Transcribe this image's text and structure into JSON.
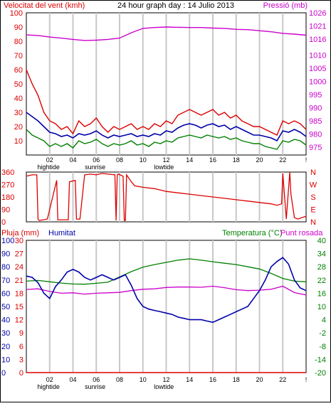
{
  "header": {
    "wind_title": "Velocitat del vent (kmh)",
    "graph_title": "24 hour graph day : 14 Julio 2013",
    "pressure_title": "Pressió (mb)"
  },
  "lower_header": {
    "rain_label": "Pluja (mm)",
    "humidity_label": "Humitat",
    "temperature_label": "Temperatura (°C)",
    "dewpoint_label": "Punt rosada"
  },
  "x_axis": {
    "hour_labels": [
      "02",
      "04",
      "06",
      "08",
      "10",
      "12",
      "14",
      "16",
      "18",
      "20",
      "22",
      "!"
    ],
    "event_labels": [
      {
        "text": "hightide",
        "hour": 1.9
      },
      {
        "text": "sunrise",
        "hour": 5.9
      },
      {
        "text": "lowtide",
        "hour": 11.8
      }
    ]
  },
  "colors": {
    "wind": "#dd0000",
    "wind_avg": "#0000aa",
    "wind_min": "#008000",
    "pressure": "#cc00cc",
    "direction": "#dd0000",
    "temperature": "#008000",
    "dewpoint": "#cc00cc",
    "humidity": "#0000aa",
    "rain": "#dd0000",
    "grid": "#c8c8c8",
    "frame": "#000000"
  },
  "chart_data": [
    {
      "type": "line",
      "title": "24 hour graph day : 14 Julio 2013",
      "x_unit": "hour",
      "xlim": [
        0,
        24
      ],
      "y_left": {
        "label": "Velocitat del vent (kmh)",
        "ticks": [
          10,
          20,
          30,
          40,
          50,
          60,
          70,
          80,
          90,
          100
        ],
        "lim": [
          0,
          100
        ]
      },
      "y_right": {
        "label": "Pressió (mb)",
        "ticks": [
          975,
          980,
          985,
          990,
          995,
          1000,
          1005,
          1010,
          1016,
          1021,
          1026
        ],
        "lim": [
          972,
          1026
        ]
      },
      "grid": true,
      "series": [
        {
          "name": "Pressió (mb)",
          "axis": "right",
          "x": [
            0,
            1,
            2,
            3,
            4,
            5,
            6,
            7,
            8,
            9,
            10,
            11,
            12,
            13,
            14,
            15,
            16,
            17,
            18,
            19,
            20,
            21,
            22,
            23,
            24
          ],
          "y": [
            1017.6,
            1017.4,
            1016.8,
            1016.4,
            1015.9,
            1015.5,
            1015.6,
            1015.9,
            1016.4,
            1018.4,
            1020.1,
            1020.4,
            1020.6,
            1020.5,
            1020.4,
            1020.4,
            1020.2,
            1020.1,
            1019.7,
            1019.6,
            1019.2,
            1018.8,
            1018.2,
            1017.9,
            1017.5
          ]
        },
        {
          "name": "gust",
          "axis": "left",
          "x": [
            0,
            0.5,
            1,
            1.5,
            2,
            2.5,
            3,
            3.5,
            4,
            4.5,
            5,
            5.5,
            6,
            6.5,
            7,
            7.5,
            8,
            8.5,
            9,
            9.5,
            10,
            10.5,
            11,
            11.5,
            12,
            12.5,
            13,
            13.5,
            14,
            14.5,
            15,
            15.5,
            16,
            16.5,
            17,
            17.5,
            18,
            18.5,
            19,
            19.5,
            20,
            20.5,
            21,
            21.5,
            22,
            22.5,
            23,
            23.5,
            24
          ],
          "y": [
            60,
            50,
            42,
            30,
            24,
            22,
            18,
            20,
            15,
            24,
            20,
            22,
            26,
            20,
            16,
            20,
            18,
            20,
            22,
            18,
            20,
            18,
            22,
            20,
            24,
            22,
            28,
            30,
            32,
            30,
            28,
            30,
            32,
            28,
            30,
            26,
            28,
            24,
            22,
            20,
            20,
            18,
            16,
            14,
            24,
            22,
            24,
            22,
            18
          ]
        },
        {
          "name": "average",
          "axis": "left",
          "x": [
            0,
            0.5,
            1,
            1.5,
            2,
            2.5,
            3,
            3.5,
            4,
            4.5,
            5,
            5.5,
            6,
            6.5,
            7,
            7.5,
            8,
            8.5,
            9,
            9.5,
            10,
            10.5,
            11,
            11.5,
            12,
            12.5,
            13,
            13.5,
            14,
            14.5,
            15,
            15.5,
            16,
            16.5,
            17,
            17.5,
            18,
            18.5,
            19,
            19.5,
            20,
            20.5,
            21,
            21.5,
            22,
            22.5,
            23,
            23.5,
            24
          ],
          "y": [
            30,
            27,
            24,
            20,
            16,
            15,
            13,
            14,
            12,
            15,
            14,
            15,
            17,
            14,
            12,
            14,
            13,
            14,
            15,
            13,
            14,
            13,
            15,
            14,
            17,
            16,
            19,
            21,
            22,
            21,
            19,
            21,
            22,
            20,
            21,
            18,
            20,
            18,
            16,
            14,
            14,
            13,
            12,
            10,
            17,
            16,
            18,
            16,
            13
          ]
        },
        {
          "name": "minimum",
          "axis": "left",
          "x": [
            0,
            0.5,
            1,
            1.5,
            2,
            2.5,
            3,
            3.5,
            4,
            4.5,
            5,
            5.5,
            6,
            6.5,
            7,
            7.5,
            8,
            8.5,
            9,
            9.5,
            10,
            10.5,
            11,
            11.5,
            12,
            12.5,
            13,
            13.5,
            14,
            14.5,
            15,
            15.5,
            16,
            16.5,
            17,
            17.5,
            18,
            18.5,
            19,
            19.5,
            20,
            20.5,
            21,
            21.5,
            22,
            22.5,
            23,
            23.5,
            24
          ],
          "y": [
            18,
            14,
            12,
            10,
            6,
            8,
            6,
            8,
            5,
            10,
            8,
            9,
            11,
            8,
            6,
            8,
            7,
            8,
            10,
            7,
            8,
            6,
            9,
            8,
            10,
            9,
            12,
            13,
            14,
            13,
            12,
            14,
            13,
            12,
            13,
            11,
            12,
            10,
            9,
            8,
            8,
            6,
            5,
            4,
            10,
            9,
            11,
            10,
            7
          ]
        }
      ]
    },
    {
      "type": "line",
      "title": "",
      "x_unit": "hour",
      "xlim": [
        0,
        24
      ],
      "y_left": {
        "label": "",
        "ticks": [
          0,
          90,
          180,
          270,
          360
        ],
        "lim": [
          0,
          360
        ]
      },
      "y_right_letters": [
        "N",
        "W",
        "S",
        "E",
        "N"
      ],
      "grid": true,
      "series": [
        {
          "name": "direction",
          "x": [
            0,
            0.5,
            0.9,
            1.0,
            1.1,
            1.8,
            2.6,
            2.7,
            3.6,
            3.7,
            4.2,
            4.3,
            4.6,
            5.0,
            5.5,
            6.0,
            6.5,
            7.0,
            7.6,
            7.7,
            7.8,
            7.9,
            8.3,
            8.4,
            8.5,
            8.6,
            9.0,
            9.3,
            10.0,
            11.0,
            12.0,
            13.0,
            14.0,
            15.0,
            16.0,
            17.0,
            18.0,
            19.0,
            20.0,
            21.0,
            21.5,
            21.9,
            22.0,
            22.3,
            22.6,
            22.7,
            23.0,
            23.3,
            23.6,
            24.0
          ],
          "y": [
            330,
            340,
            340,
            20,
            10,
            20,
            300,
            15,
            15,
            290,
            300,
            20,
            20,
            340,
            345,
            340,
            350,
            345,
            340,
            10,
            340,
            345,
            330,
            10,
            10,
            340,
            290,
            260,
            250,
            240,
            220,
            210,
            200,
            190,
            180,
            170,
            160,
            150,
            140,
            130,
            120,
            130,
            350,
            20,
            360,
            200,
            30,
            20,
            30,
            40
          ]
        }
      ]
    },
    {
      "type": "line",
      "title": "",
      "x_unit": "hour",
      "xlim": [
        0,
        24
      ],
      "y_left_humidity": {
        "label": "Humitat",
        "ticks": [
          0,
          10,
          20,
          30,
          40,
          50,
          60,
          70,
          80,
          90,
          100
        ],
        "lim": [
          0,
          100
        ]
      },
      "y_left_rain": {
        "label": "Pluja (mm)",
        "ticks": [
          0,
          3,
          6,
          9,
          12,
          15,
          18,
          21,
          24,
          27,
          30
        ],
        "lim": [
          0,
          30
        ]
      },
      "y_right": {
        "label": "Temperatura (°C)",
        "ticks": [
          -20,
          -14,
          -8,
          -2,
          4,
          10,
          16,
          22,
          28,
          34,
          40
        ],
        "lim": [
          -20,
          40
        ]
      },
      "grid": true,
      "series": [
        {
          "name": "Temperatura (°C)",
          "axis": "right",
          "x": [
            0,
            1,
            2,
            3,
            4,
            5,
            6,
            7,
            8,
            9,
            10,
            11,
            12,
            13,
            14,
            15,
            16,
            17,
            18,
            19,
            20,
            21,
            22,
            23,
            24
          ],
          "y": [
            21.5,
            21.8,
            21.2,
            20.6,
            20.2,
            20.1,
            20.5,
            21.0,
            23.4,
            25.8,
            27.8,
            29.0,
            30.0,
            31.0,
            31.6,
            31.0,
            30.3,
            29.6,
            29.0,
            28.0,
            27.0,
            25.0,
            22.7,
            21.5,
            21.2
          ]
        },
        {
          "name": "Punt rosada",
          "axis": "right",
          "x": [
            0,
            1,
            2,
            3,
            4,
            5,
            6,
            7,
            8,
            9,
            10,
            11,
            12,
            13,
            14,
            15,
            16,
            17,
            18,
            19,
            20,
            21,
            22,
            23,
            24
          ],
          "y": [
            17.7,
            18.0,
            16.8,
            16.0,
            16.2,
            15.6,
            16.0,
            16.2,
            16.4,
            17.2,
            17.8,
            18.0,
            18.6,
            18.8,
            18.8,
            18.7,
            19.2,
            18.5,
            17.6,
            17.2,
            17.4,
            17.8,
            19.2,
            16.3,
            15.2
          ]
        },
        {
          "name": "Humitat",
          "axis": "left",
          "x": [
            0,
            0.5,
            1,
            1.5,
            2,
            2.5,
            3,
            3.5,
            4,
            4.5,
            5,
            5.5,
            6,
            6.5,
            7,
            7.5,
            8,
            8.5,
            9,
            9.5,
            10,
            10.5,
            11,
            11.5,
            12,
            12.5,
            13,
            13.5,
            14,
            14.5,
            15,
            15.5,
            16,
            16.5,
            17,
            17.5,
            18,
            18.5,
            19,
            19.5,
            20,
            20.5,
            21,
            21.5,
            22,
            22.5,
            23,
            23.5,
            24
          ],
          "y": [
            73,
            72,
            68,
            60,
            56,
            65,
            70,
            76,
            78,
            76,
            72,
            70,
            72,
            74,
            72,
            70,
            72,
            74,
            66,
            56,
            50,
            48,
            47,
            46,
            45,
            44,
            42,
            41,
            40,
            40,
            40,
            39,
            38,
            40,
            42,
            44,
            46,
            48,
            50,
            56,
            62,
            70,
            80,
            84,
            87,
            82,
            70,
            64,
            62
          ]
        }
      ]
    }
  ]
}
